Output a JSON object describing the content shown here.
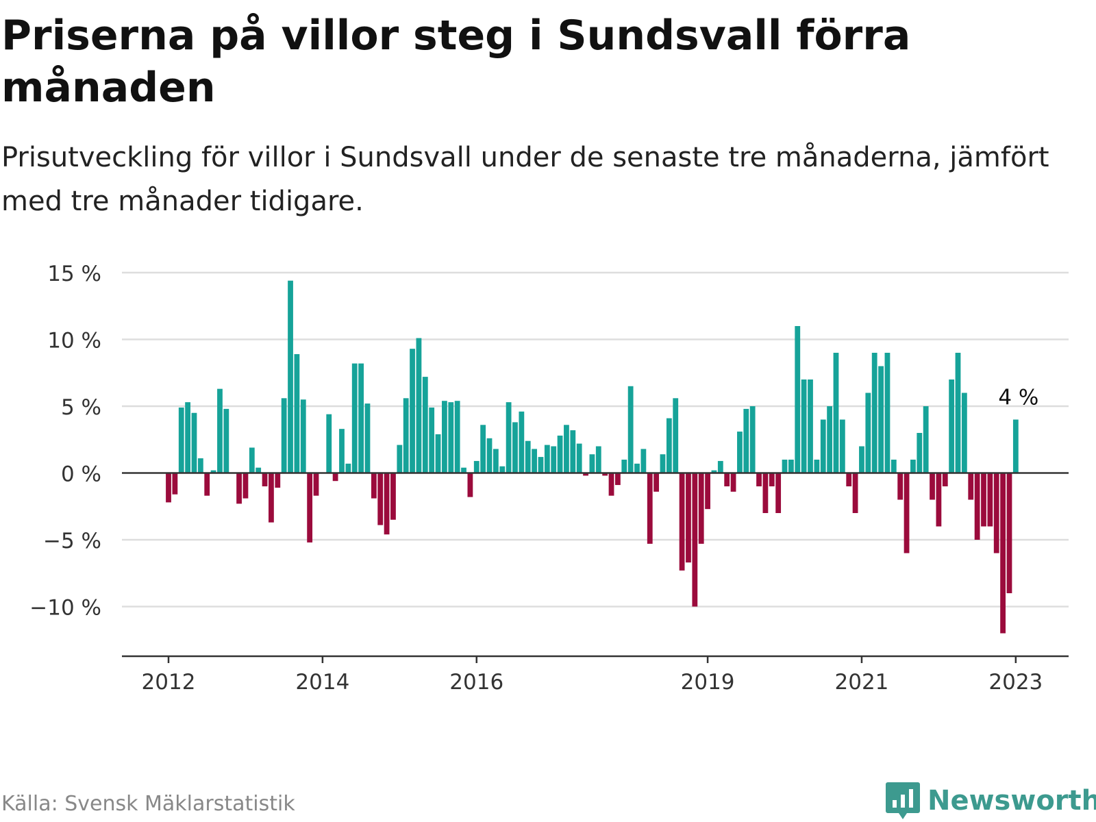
{
  "title": "Priserna på villor steg i Sundsvall förra månaden",
  "subtitle": "Prisutveckling för villor i Sundsvall under de senaste tre månaderna, jämfört med tre månader tidigare.",
  "source": "Källa: Svensk Mäklarstatistik",
  "logo_text": "Newsworthy",
  "logo_icon": "bar-chart-speech-bubble-icon",
  "colors": {
    "positive": "#16a399",
    "negative": "#9b0b3c",
    "axis": "#333333",
    "grid": "#dddddd",
    "brand": "#3d9a8f"
  },
  "chart_data": {
    "type": "bar",
    "title": "Priserna på villor steg i Sundsvall förra månaden",
    "subtitle": "Prisutveckling för villor i Sundsvall under de senaste tre månaderna, jämfört med tre månader tidigare.",
    "xlabel": "",
    "ylabel": "",
    "unit": "%",
    "ylim": [
      -12.5,
      15
    ],
    "yticks": [
      15,
      10,
      5,
      0,
      -5,
      -10
    ],
    "ytick_labels": [
      "15 %",
      "10 %",
      "5 %",
      "0 %",
      "−5 %",
      "−10 %"
    ],
    "xticks": [
      {
        "year": 2012,
        "label": "2012"
      },
      {
        "year": 2014,
        "label": "2014"
      },
      {
        "year": 2016,
        "label": "2016"
      },
      {
        "year": 2019,
        "label": "2019"
      },
      {
        "year": 2021,
        "label": "2021"
      },
      {
        "year": 2023,
        "label": "2023"
      }
    ],
    "x_start": "2012-01",
    "x_end": "2023-01",
    "grid": true,
    "legend": "none",
    "annotation": {
      "label": "4 %",
      "x": "2023-01"
    },
    "values": [
      -2.2,
      -1.6,
      4.9,
      5.3,
      4.5,
      1.1,
      -1.7,
      0.2,
      6.3,
      4.8,
      null,
      -2.3,
      -1.9,
      1.9,
      0.4,
      -1.0,
      -3.7,
      -1.1,
      5.6,
      14.4,
      8.9,
      5.5,
      -5.2,
      -1.7,
      null,
      4.4,
      -0.6,
      3.3,
      0.7,
      8.2,
      8.2,
      5.2,
      -1.9,
      -3.9,
      -4.6,
      -3.5,
      2.1,
      5.6,
      9.3,
      10.1,
      7.2,
      4.9,
      2.9,
      5.4,
      5.3,
      5.4,
      0.4,
      -1.8,
      0.9,
      3.6,
      2.6,
      1.8,
      0.5,
      5.3,
      3.8,
      4.6,
      2.4,
      1.8,
      1.2,
      2.1,
      2.0,
      2.8,
      3.6,
      3.2,
      2.2,
      -0.2,
      1.4,
      2.0,
      -0.2,
      -1.7,
      -0.9,
      1.0,
      6.5,
      0.7,
      1.8,
      -5.3,
      -1.4,
      1.4,
      4.1,
      5.6,
      -7.3,
      -6.7,
      -10.0,
      -5.3,
      -2.7,
      0.2,
      0.9,
      -1.0,
      -1.4,
      3.1,
      4.8,
      5.0,
      -1.0,
      -3.0,
      -1.0,
      -3.0,
      1.0,
      1.0,
      11.0,
      7.0,
      7.0,
      1.0,
      4.0,
      5.0,
      9.0,
      4.0,
      -1.0,
      -3.0,
      2.0,
      6.0,
      9.0,
      8.0,
      9.0,
      1.0,
      -2.0,
      -6.0,
      1.0,
      3.0,
      5.0,
      -2.0,
      -4.0,
      -1.0,
      7.0,
      9.0,
      6.0,
      -2.0,
      -5.0,
      -4.0,
      -4.0,
      -6.0,
      -12.0,
      -9.0,
      4.0
    ]
  }
}
